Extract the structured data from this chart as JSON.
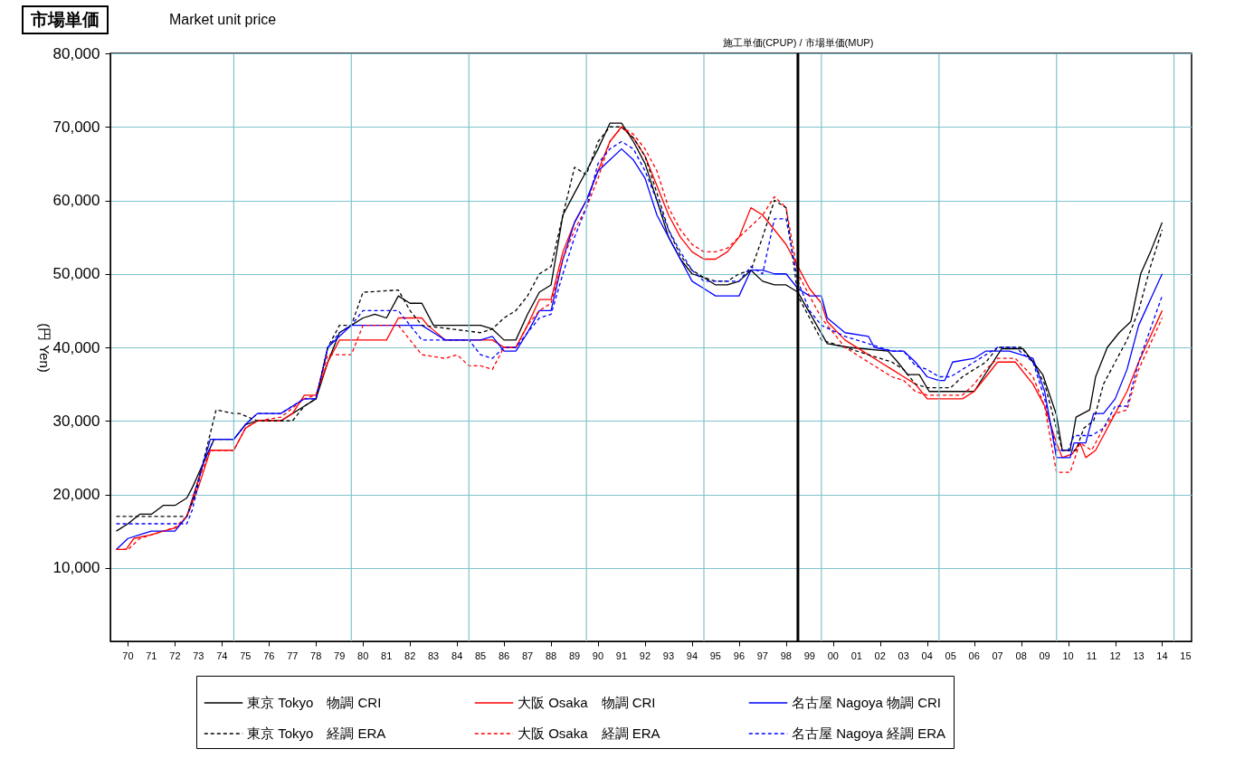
{
  "chart_data": {
    "type": "line",
    "title": "市場単価",
    "subtitle": "Market unit price",
    "ylabel": "(円 Yen)",
    "xlim": [
      "1969-10",
      "2015-10"
    ],
    "xticks": [
      {
        "value": "1970-07",
        "label": "70"
      },
      {
        "value": "1971-07",
        "label": "71"
      },
      {
        "value": "1972-07",
        "label": "72"
      },
      {
        "value": "1973-07",
        "label": "73"
      },
      {
        "value": "1974-07",
        "label": "74"
      },
      {
        "value": "1975-07",
        "label": "75"
      },
      {
        "value": "1976-07",
        "label": "76"
      },
      {
        "value": "1977-07",
        "label": "77"
      },
      {
        "value": "1978-07",
        "label": "78"
      },
      {
        "value": "1979-07",
        "label": "79"
      },
      {
        "value": "1980-07",
        "label": "80"
      },
      {
        "value": "1981-07",
        "label": "81"
      },
      {
        "value": "1982-07",
        "label": "82"
      },
      {
        "value": "1983-07",
        "label": "83"
      },
      {
        "value": "1984-07",
        "label": "84"
      },
      {
        "value": "1985-07",
        "label": "85"
      },
      {
        "value": "1986-07",
        "label": "86"
      },
      {
        "value": "1987-07",
        "label": "87"
      },
      {
        "value": "1988-07",
        "label": "88"
      },
      {
        "value": "1989-07",
        "label": "89"
      },
      {
        "value": "1990-07",
        "label": "90"
      },
      {
        "value": "1991-07",
        "label": "91"
      },
      {
        "value": "1992-07",
        "label": "92"
      },
      {
        "value": "1993-07",
        "label": "93"
      },
      {
        "value": "1994-07",
        "label": "94"
      },
      {
        "value": "1995-07",
        "label": "95"
      },
      {
        "value": "1996-07",
        "label": "96"
      },
      {
        "value": "1997-07",
        "label": "97"
      },
      {
        "value": "1998-07",
        "label": "98"
      },
      {
        "value": "1999-07",
        "label": "99"
      },
      {
        "value": "2000-07",
        "label": "00"
      },
      {
        "value": "2001-07",
        "label": "01"
      },
      {
        "value": "2002-07",
        "label": "02"
      },
      {
        "value": "2003-07",
        "label": "03"
      },
      {
        "value": "2004-07",
        "label": "04"
      },
      {
        "value": "2005-07",
        "label": "05"
      },
      {
        "value": "2006-07",
        "label": "06"
      },
      {
        "value": "2007-07",
        "label": "07"
      },
      {
        "value": "2008-07",
        "label": "08"
      },
      {
        "value": "2009-07",
        "label": "09"
      },
      {
        "value": "2010-07",
        "label": "10"
      },
      {
        "value": "2011-07",
        "label": "11"
      },
      {
        "value": "2012-07",
        "label": "12"
      },
      {
        "value": "2013-07",
        "label": "13"
      },
      {
        "value": "2014-07",
        "label": "14"
      },
      {
        "value": "2015-07",
        "label": "15"
      }
    ],
    "ylim": [
      0,
      80000
    ],
    "yticks": [
      {
        "value": 10000,
        "label": "10,000"
      },
      {
        "value": 20000,
        "label": "20,000"
      },
      {
        "value": 30000,
        "label": "30,000"
      },
      {
        "value": 40000,
        "label": "40,000"
      },
      {
        "value": 50000,
        "label": "50,000"
      },
      {
        "value": 60000,
        "label": "60,000"
      },
      {
        "value": 70000,
        "label": "70,000"
      },
      {
        "value": 80000,
        "label": "80,000"
      }
    ],
    "grid": "y",
    "legend": "bottom",
    "ref_lines": [
      {
        "axis": "x",
        "value": "1975-01",
        "color": "#7fc4cc"
      },
      {
        "axis": "x",
        "value": "1980-01",
        "color": "#7fc4cc"
      },
      {
        "axis": "x",
        "value": "1985-01",
        "color": "#7fc4cc"
      },
      {
        "axis": "x",
        "value": "1990-01",
        "color": "#7fc4cc"
      },
      {
        "axis": "x",
        "value": "1995-01",
        "color": "#7fc4cc"
      },
      {
        "axis": "x",
        "value": "2000-01",
        "color": "#7fc4cc"
      },
      {
        "axis": "x",
        "value": "2005-01",
        "color": "#7fc4cc"
      },
      {
        "axis": "x",
        "value": "2010-01",
        "color": "#7fc4cc"
      },
      {
        "axis": "x",
        "value": "2015-01",
        "color": "#7fc4cc"
      },
      {
        "axis": "x",
        "value": "1999-01",
        "label": "施工単価(CPUP) / 市場単価(MUP)",
        "color": "#000000"
      }
    ],
    "series": [
      {
        "name": "東京 Tokyo　物調 CRI",
        "color": "#000000",
        "line_style": "solid",
        "x": [
          "1970-01",
          "1970-07",
          "1971-01",
          "1971-07",
          "1972-01",
          "1972-07",
          "1973-01",
          "1973-04",
          "1973-09",
          "1974-03",
          "1975-01",
          "1975-07",
          "1976-01",
          "1977-01",
          "1977-07",
          "1978-01",
          "1978-07",
          "1979-01",
          "1979-07",
          "1980-01",
          "1980-07",
          "1981-01",
          "1981-07",
          "1982-01",
          "1982-07",
          "1983-01",
          "1983-07",
          "1985-01",
          "1985-07",
          "1986-01",
          "1986-07",
          "1987-01",
          "1987-07",
          "1988-01",
          "1988-07",
          "1989-01",
          "1989-07",
          "1990-01",
          "1990-07",
          "1991-01",
          "1991-07",
          "1992-01",
          "1992-07",
          "1993-01",
          "1993-07",
          "1994-01",
          "1994-07",
          "1995-01",
          "1995-07",
          "1996-01",
          "1996-07",
          "1997-01",
          "1997-07",
          "1998-01",
          "1998-07",
          "1999-01",
          "2000-04",
          "2001-03",
          "2002-11",
          "2003-04",
          "2003-09",
          "2004-03",
          "2004-08",
          "2006-07",
          "2007-09",
          "2008-08",
          "2009-06",
          "2010-01",
          "2010-04",
          "2010-08",
          "2010-11",
          "2011-06",
          "2011-09",
          "2012-03",
          "2012-09",
          "2013-03",
          "2013-08",
          "2014-01",
          "2014-07"
        ],
        "values": [
          15000,
          16000,
          17300,
          17300,
          18500,
          18500,
          19500,
          21000,
          24000,
          27500,
          27500,
          29500,
          30000,
          30000,
          31000,
          32000,
          33000,
          38000,
          42000,
          43000,
          44000,
          44500,
          44000,
          47000,
          46000,
          46000,
          43000,
          43000,
          43000,
          42500,
          41000,
          41000,
          44500,
          47500,
          48500,
          58000,
          61000,
          64000,
          67000,
          70500,
          70500,
          68000,
          65000,
          60000,
          55000,
          52000,
          50000,
          49500,
          48500,
          48500,
          49000,
          50500,
          49000,
          48500,
          48500,
          47500,
          40500,
          40000,
          39500,
          38000,
          36300,
          36300,
          34000,
          34000,
          39800,
          39800,
          36300,
          30800,
          26000,
          26000,
          30500,
          31500,
          36000,
          40000,
          42000,
          43500,
          50000,
          53000,
          57000
        ]
      },
      {
        "name": "大阪 Osaka　物調 CRI",
        "color": "#ff0000",
        "line_style": "solid",
        "x": [
          "1970-01",
          "1970-06",
          "1970-10",
          "1971-07",
          "1972-01",
          "1972-08",
          "1973-01",
          "1973-07",
          "1974-01",
          "1975-01",
          "1975-07",
          "1976-01",
          "1977-01",
          "1977-07",
          "1978-01",
          "1978-07",
          "1979-01",
          "1979-07",
          "1980-01",
          "1981-01",
          "1981-07",
          "1982-01",
          "1982-07",
          "1983-01",
          "1983-04",
          "1984-01",
          "1985-07",
          "1986-01",
          "1986-07",
          "1987-01",
          "1987-07",
          "1988-01",
          "1988-07",
          "1989-01",
          "1989-07",
          "1990-01",
          "1990-07",
          "1991-01",
          "1991-07",
          "1992-01",
          "1992-07",
          "1993-01",
          "1993-07",
          "1994-01",
          "1994-07",
          "1995-01",
          "1995-07",
          "1996-01",
          "1996-07",
          "1997-01",
          "1997-07",
          "1998-01",
          "1998-07",
          "1999-01",
          "1999-07",
          "2000-01",
          "2000-04",
          "2001-01",
          "2002-01",
          "2002-07",
          "2003-01",
          "2003-07",
          "2004-01",
          "2004-07",
          "2006-01",
          "2006-07",
          "2007-01",
          "2007-07",
          "2008-04",
          "2009-01",
          "2009-07",
          "2010-01",
          "2010-04",
          "2010-09",
          "2011-01",
          "2011-04",
          "2011-09",
          "2012-01",
          "2012-07",
          "2013-01",
          "2013-07",
          "2014-07"
        ],
        "values": [
          12500,
          12500,
          14000,
          14500,
          15000,
          15500,
          17000,
          21000,
          26000,
          26000,
          29000,
          30000,
          30000,
          31000,
          33500,
          33500,
          38000,
          41000,
          41000,
          41000,
          41000,
          44000,
          44000,
          44000,
          43000,
          41000,
          41000,
          41000,
          40000,
          40000,
          43000,
          46500,
          46500,
          53000,
          57000,
          60000,
          64000,
          68000,
          70000,
          68500,
          66000,
          62000,
          58000,
          55000,
          53000,
          52000,
          52000,
          53000,
          55000,
          59000,
          58000,
          56000,
          54000,
          51000,
          48000,
          46000,
          43500,
          41000,
          39000,
          38000,
          37000,
          36000,
          35000,
          33000,
          33000,
          34000,
          36000,
          38000,
          38000,
          35000,
          32000,
          27000,
          25000,
          25500,
          27000,
          25000,
          26000,
          28000,
          31000,
          34000,
          38000,
          45000
        ]
      },
      {
        "name": "名古屋 Nagoya 物調 CRI",
        "color": "#0000ff",
        "line_style": "solid",
        "x": [
          "1970-01",
          "1970-07",
          "1971-01",
          "1971-07",
          "1972-01",
          "1972-07",
          "1973-01",
          "1973-07",
          "1974-01",
          "1975-01",
          "1975-07",
          "1976-01",
          "1977-01",
          "1977-07",
          "1978-01",
          "1978-07",
          "1979-01",
          "1979-07",
          "1980-01",
          "1981-01",
          "1981-07",
          "1982-01",
          "1982-07",
          "1983-01",
          "1983-07",
          "1984-01",
          "1985-07",
          "1986-01",
          "1986-07",
          "1987-01",
          "1987-07",
          "1988-01",
          "1988-07",
          "1989-01",
          "1989-07",
          "1990-01",
          "1990-07",
          "1991-01",
          "1991-07",
          "1992-01",
          "1992-07",
          "1993-01",
          "1993-07",
          "1994-01",
          "1994-07",
          "1995-01",
          "1995-07",
          "1996-01",
          "1996-07",
          "1997-01",
          "1997-07",
          "1998-01",
          "1998-07",
          "1999-01",
          "1999-07",
          "2000-01",
          "2000-04",
          "2001-01",
          "2002-01",
          "2002-04",
          "2003-01",
          "2003-07",
          "2004-01",
          "2004-07",
          "2005-01",
          "2005-04",
          "2005-08",
          "2006-07",
          "2007-01",
          "2008-01",
          "2008-07",
          "2009-01",
          "2009-07",
          "2010-01",
          "2010-08",
          "2010-10",
          "2011-04",
          "2011-08",
          "2012-01",
          "2012-07",
          "2013-01",
          "2013-07",
          "2014-07"
        ],
        "values": [
          12500,
          14000,
          14500,
          15000,
          15000,
          15000,
          17000,
          22000,
          27500,
          27500,
          29500,
          31000,
          31000,
          32000,
          33000,
          33000,
          40000,
          41500,
          43000,
          43000,
          43000,
          43000,
          43000,
          43000,
          42000,
          41000,
          41000,
          41500,
          39500,
          39500,
          42000,
          45000,
          45000,
          52000,
          57000,
          60000,
          64000,
          65500,
          67000,
          65500,
          63000,
          58000,
          55000,
          52000,
          49000,
          48000,
          47000,
          47000,
          47000,
          50500,
          50500,
          50000,
          50000,
          48000,
          47000,
          47000,
          44000,
          42000,
          41500,
          40000,
          39500,
          39500,
          38000,
          36000,
          35500,
          35500,
          38000,
          38500,
          39500,
          39500,
          39000,
          38500,
          34000,
          25000,
          25000,
          27000,
          27000,
          31000,
          31000,
          33000,
          37000,
          43000,
          50000
        ]
      },
      {
        "name": "東京 Tokyo　経調 ERA",
        "color": "#000000",
        "line_style": "dashed",
        "x": [
          "1970-01",
          "1973-01",
          "1973-04",
          "1973-09",
          "1974-04",
          "1975-01",
          "1975-04",
          "1976-01",
          "1977-07",
          "1978-01",
          "1978-07",
          "1979-01",
          "1979-07",
          "1980-01",
          "1980-07",
          "1982-01",
          "1982-07",
          "1983-01",
          "1985-07",
          "1986-01",
          "1986-07",
          "1987-01",
          "1987-07",
          "1988-01",
          "1988-07",
          "1989-01",
          "1989-07",
          "1990-01",
          "1990-07",
          "1991-01",
          "1991-07",
          "1992-01",
          "1992-07",
          "1993-01",
          "1993-07",
          "1994-01",
          "1994-07",
          "1995-01",
          "1995-07",
          "1996-01",
          "1996-07",
          "1997-01",
          "1997-07",
          "1998-01",
          "1998-07",
          "1999-01",
          "1999-07",
          "2000-01",
          "2001-01",
          "2002-01",
          "2003-01",
          "2003-07",
          "2004-01",
          "2004-07",
          "2005-07",
          "2006-01",
          "2006-07",
          "2007-01",
          "2007-07",
          "2008-07",
          "2009-01",
          "2009-07",
          "2010-01",
          "2010-04",
          "2010-11",
          "2011-03",
          "2011-08",
          "2012-01",
          "2012-07",
          "2013-01",
          "2013-07",
          "2014-01",
          "2014-07"
        ],
        "values": [
          17000,
          17000,
          19000,
          24000,
          31500,
          31000,
          31000,
          30000,
          30000,
          32000,
          33000,
          40000,
          43000,
          43000,
          47500,
          47800,
          45000,
          43000,
          42000,
          42500,
          44000,
          45000,
          47000,
          50000,
          51000,
          58000,
          64500,
          63500,
          68000,
          70000,
          70000,
          68500,
          66000,
          61000,
          56000,
          52500,
          50500,
          49500,
          49000,
          49000,
          50000,
          50500,
          55000,
          60000,
          59000,
          47000,
          44000,
          41000,
          40000,
          39000,
          38000,
          37000,
          35000,
          34500,
          34500,
          36000,
          37000,
          38000,
          40000,
          40000,
          38000,
          35000,
          29000,
          26000,
          26000,
          29000,
          30000,
          35000,
          38000,
          41000,
          45000,
          51000,
          56000
        ]
      },
      {
        "name": "大阪 Osaka　経調 ERA",
        "color": "#ff0000",
        "line_style": "dashed",
        "x": [
          "1970-01",
          "1970-07",
          "1971-01",
          "1972-01",
          "1972-07",
          "1973-01",
          "1973-07",
          "1974-01",
          "1975-01",
          "1975-07",
          "1976-01",
          "1977-01",
          "1978-01",
          "1978-07",
          "1979-01",
          "1980-01",
          "1980-07",
          "1982-01",
          "1982-07",
          "1983-01",
          "1984-01",
          "1984-07",
          "1985-01",
          "1985-07",
          "1986-01",
          "1986-07",
          "1987-01",
          "1987-07",
          "1988-01",
          "1988-07",
          "1989-01",
          "1989-07",
          "1990-01",
          "1990-07",
          "1991-01",
          "1991-07",
          "1992-01",
          "1992-07",
          "1993-01",
          "1993-07",
          "1994-01",
          "1994-07",
          "1995-01",
          "1995-07",
          "1996-01",
          "1996-07",
          "1997-01",
          "1997-07",
          "1998-01",
          "1998-07",
          "1999-01",
          "1999-07",
          "2000-01",
          "2001-01",
          "2002-01",
          "2002-07",
          "2003-01",
          "2003-07",
          "2004-01",
          "2004-07",
          "2006-01",
          "2006-07",
          "2007-01",
          "2007-07",
          "2008-04",
          "2009-01",
          "2009-07",
          "2010-01",
          "2010-08",
          "2011-01",
          "2011-07",
          "2012-01",
          "2012-07",
          "2013-01",
          "2013-07",
          "2014-07"
        ],
        "values": [
          12500,
          12500,
          14000,
          15000,
          15500,
          17000,
          22000,
          26000,
          26000,
          29000,
          30000,
          30500,
          33000,
          33500,
          39000,
          39000,
          43000,
          43000,
          41000,
          39000,
          38500,
          39000,
          37500,
          37500,
          37000,
          40000,
          40000,
          43000,
          45000,
          46000,
          52000,
          56000,
          59000,
          63000,
          68000,
          70000,
          69000,
          67000,
          64000,
          59000,
          56000,
          54000,
          53000,
          53000,
          53500,
          55000,
          56500,
          58000,
          60500,
          59000,
          50000,
          47000,
          44000,
          40000,
          38000,
          37000,
          36000,
          35500,
          34000,
          33500,
          33500,
          35000,
          37000,
          38500,
          38500,
          36000,
          32000,
          23000,
          23000,
          27000,
          26000,
          29000,
          31000,
          31500,
          37000,
          44000
        ]
      },
      {
        "name": "名古屋 Nagoya 経調 ERA",
        "color": "#0000ff",
        "line_style": "dashed",
        "x": [
          "1970-01",
          "1973-01",
          "1973-04",
          "1973-09",
          "1974-03",
          "1975-01",
          "1975-07",
          "1976-01",
          "1977-01",
          "1977-07",
          "1978-01",
          "1978-07",
          "1979-01",
          "1979-07",
          "1980-01",
          "1980-07",
          "1982-01",
          "1982-07",
          "1983-01",
          "1985-01",
          "1985-07",
          "1986-01",
          "1986-07",
          "1987-01",
          "1987-07",
          "1988-01",
          "1988-07",
          "1989-01",
          "1989-07",
          "1990-01",
          "1990-07",
          "1991-01",
          "1991-07",
          "1992-01",
          "1992-07",
          "1993-01",
          "1993-07",
          "1994-01",
          "1994-07",
          "1995-01",
          "1995-07",
          "1996-01",
          "1996-07",
          "1997-01",
          "1997-07",
          "1998-01",
          "1998-07",
          "1999-01",
          "1999-07",
          "2000-01",
          "2001-01",
          "2002-01",
          "2003-01",
          "2003-07",
          "2004-01",
          "2004-07",
          "2005-01",
          "2005-07",
          "2006-01",
          "2006-07",
          "2007-01",
          "2007-07",
          "2008-04",
          "2009-01",
          "2009-07",
          "2010-01",
          "2010-07",
          "2010-10",
          "2011-07",
          "2012-01",
          "2012-07",
          "2013-01",
          "2013-07",
          "2014-07"
        ],
        "values": [
          16000,
          16000,
          18000,
          24000,
          27500,
          27500,
          29500,
          31000,
          31000,
          32000,
          33000,
          33000,
          40000,
          42000,
          43000,
          45000,
          45000,
          43000,
          41000,
          41000,
          39000,
          38500,
          40000,
          40000,
          42000,
          44000,
          44500,
          50000,
          55000,
          59000,
          65000,
          67000,
          68000,
          67000,
          64000,
          60000,
          56000,
          53000,
          50500,
          49000,
          49000,
          49000,
          49000,
          51000,
          50000,
          57500,
          57500,
          49000,
          45000,
          43000,
          41500,
          40500,
          39500,
          39500,
          37500,
          37000,
          36000,
          36000,
          37000,
          38000,
          39000,
          40000,
          40000,
          38000,
          33000,
          26000,
          26000,
          28000,
          28000,
          29000,
          32000,
          32000,
          38000,
          47000
        ]
      }
    ]
  }
}
